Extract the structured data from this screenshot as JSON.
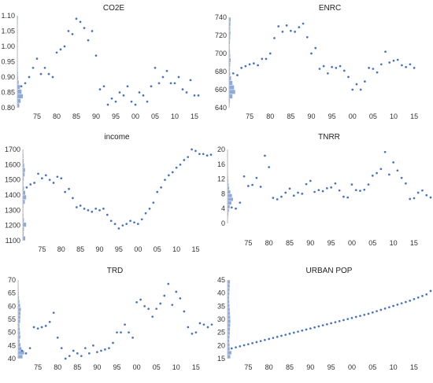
{
  "chart_data": [
    {
      "type": "scatter",
      "title": "CO2E",
      "ylim": [
        0.8,
        1.1
      ],
      "yticks": [
        0.8,
        0.85,
        0.9,
        0.95,
        1.0,
        1.05,
        1.1
      ],
      "ytick_labels": [
        "0.80",
        "0.85",
        "0.90",
        "0.95",
        "1.00",
        "1.05",
        "1.10"
      ],
      "xlim": [
        1970,
        2019
      ],
      "xticks": [
        1975,
        1980,
        1985,
        1990,
        1995,
        2000,
        2005,
        2010,
        2015
      ],
      "xtick_labels": [
        "75",
        "80",
        "85",
        "90",
        "95",
        "00",
        "05",
        "10",
        "15"
      ],
      "grid": false,
      "series": [
        {
          "x": [
            1971,
            1972,
            1973,
            1974,
            1975,
            1976,
            1977,
            1978,
            1979,
            1980,
            1981,
            1982,
            1983,
            1984,
            1985,
            1986,
            1987,
            1988,
            1989,
            1990,
            1991,
            1992,
            1993,
            1994,
            1995,
            1996,
            1997,
            1998,
            1999,
            2000,
            2001,
            2002,
            2003,
            2004,
            2005,
            2006,
            2007,
            2008,
            2009,
            2010,
            2011,
            2012,
            2013,
            2014,
            2015,
            2016
          ],
          "y": [
            0.87,
            0.88,
            0.9,
            0.93,
            0.96,
            0.91,
            0.93,
            0.91,
            0.9,
            0.98,
            0.99,
            1.0,
            1.05,
            1.04,
            1.09,
            1.08,
            1.06,
            1.02,
            1.05,
            0.97,
            0.86,
            0.87,
            0.81,
            0.83,
            0.82,
            0.85,
            0.84,
            0.87,
            0.82,
            0.81,
            0.85,
            0.84,
            0.82,
            0.87,
            0.93,
            0.88,
            0.9,
            0.92,
            0.88,
            0.88,
            0.9,
            0.86,
            0.85,
            0.89,
            0.84,
            0.84
          ]
        }
      ],
      "marginal_histogram": [
        0.18,
        0.3,
        0.5,
        0.38,
        0.24,
        0.12,
        0.08,
        0.06,
        0.05,
        0.04,
        0.03,
        0.03,
        0.03,
        0.04,
        0.05,
        0.04,
        0.03,
        0.04,
        0.05,
        0.06
      ]
    },
    {
      "type": "scatter",
      "title": "ENRC",
      "ylim": [
        640,
        740
      ],
      "yticks": [
        640,
        660,
        680,
        700,
        720,
        740
      ],
      "ytick_labels": [
        "640",
        "660",
        "680",
        "700",
        "720",
        "740"
      ],
      "xlim": [
        1970,
        2019
      ],
      "xticks": [
        1975,
        1980,
        1985,
        1990,
        1995,
        2000,
        2005,
        2010,
        2015
      ],
      "xtick_labels": [
        "75",
        "80",
        "85",
        "90",
        "95",
        "00",
        "05",
        "10",
        "15"
      ],
      "grid": false,
      "series": [
        {
          "x": [
            1971,
            1972,
            1973,
            1974,
            1975,
            1976,
            1977,
            1978,
            1979,
            1980,
            1981,
            1982,
            1983,
            1984,
            1985,
            1986,
            1987,
            1988,
            1989,
            1990,
            1991,
            1992,
            1993,
            1994,
            1995,
            1996,
            1997,
            1998,
            1999,
            2000,
            2001,
            2002,
            2003,
            2004,
            2005,
            2006,
            2007,
            2008,
            2009,
            2010,
            2011,
            2012,
            2013,
            2014,
            2015
          ],
          "y": [
            678,
            676,
            684,
            686,
            688,
            689,
            687,
            694,
            694,
            700,
            717,
            730,
            724,
            731,
            725,
            724,
            729,
            733,
            718,
            700,
            706,
            683,
            686,
            678,
            685,
            684,
            686,
            681,
            674,
            660,
            666,
            660,
            669,
            684,
            683,
            679,
            688,
            702,
            690,
            692,
            693,
            687,
            685,
            688,
            684
          ]
        }
      ],
      "marginal_histogram": [
        0.05,
        0.08,
        0.3,
        0.55,
        0.45,
        0.3,
        0.18,
        0.1,
        0.08,
        0.1,
        0.14,
        0.1,
        0.08,
        0.06,
        0.08,
        0.1,
        0.12,
        0.1,
        0.12,
        0.14
      ]
    },
    {
      "type": "scatter",
      "title": "income",
      "ylim": [
        1100,
        1700
      ],
      "yticks": [
        1100,
        1200,
        1300,
        1400,
        1500,
        1600,
        1700
      ],
      "ytick_labels": [
        "1100",
        "1200",
        "1300",
        "1400",
        "1500",
        "1600",
        "1700"
      ],
      "xlim": [
        1970,
        2019
      ],
      "xticks": [
        1975,
        1980,
        1985,
        1990,
        1995,
        2000,
        2005,
        2010,
        2015
      ],
      "xtick_labels": [
        "75",
        "80",
        "85",
        "90",
        "95",
        "00",
        "05",
        "10",
        "15"
      ],
      "grid": false,
      "series": [
        {
          "x": [
            1971,
            1972,
            1973,
            1974,
            1975,
            1976,
            1977,
            1978,
            1979,
            1980,
            1981,
            1982,
            1983,
            1984,
            1985,
            1986,
            1987,
            1988,
            1989,
            1990,
            1991,
            1992,
            1993,
            1994,
            1995,
            1996,
            1997,
            1998,
            1999,
            2000,
            2001,
            2002,
            2003,
            2004,
            2005,
            2006,
            2007,
            2008,
            2009,
            2010,
            2011,
            2012,
            2013,
            2014,
            2015,
            2016,
            2017,
            2018,
            2019
          ],
          "y": [
            1450,
            1470,
            1480,
            1540,
            1510,
            1530,
            1500,
            1480,
            1520,
            1510,
            1420,
            1440,
            1380,
            1320,
            1330,
            1310,
            1300,
            1290,
            1310,
            1300,
            1310,
            1270,
            1230,
            1210,
            1180,
            1200,
            1210,
            1230,
            1220,
            1210,
            1240,
            1280,
            1310,
            1350,
            1420,
            1450,
            1500,
            1530,
            1550,
            1580,
            1600,
            1630,
            1650,
            1700,
            1690,
            1670,
            1670,
            1660,
            1665
          ]
        }
      ],
      "marginal_histogram": [
        0.22,
        0.08,
        0.1,
        0.3,
        0.1,
        0.06,
        0.05,
        0.06,
        0.18,
        0.3,
        0.22,
        0.1,
        0.06,
        0.08,
        0.16,
        0.2,
        0.12,
        0.08,
        0.06,
        0.05
      ]
    },
    {
      "type": "scatter",
      "title": "TNRR",
      "ylim": [
        0,
        20
      ],
      "yticks": [
        0,
        4,
        8,
        12,
        16,
        20
      ],
      "ytick_labels": [
        "0",
        "4",
        "8",
        "12",
        "16",
        "20"
      ],
      "xlim": [
        1970,
        2019
      ],
      "xticks": [
        1975,
        1980,
        1985,
        1990,
        1995,
        2000,
        2005,
        2010,
        2015
      ],
      "xtick_labels": [
        "75",
        "80",
        "85",
        "90",
        "95",
        "00",
        "05",
        "10",
        "15"
      ],
      "grid": false,
      "series": [
        {
          "x": [
            1971,
            1972,
            1973,
            1974,
            1975,
            1976,
            1977,
            1978,
            1979,
            1980,
            1981,
            1982,
            1983,
            1984,
            1985,
            1986,
            1987,
            1988,
            1989,
            1990,
            1991,
            1992,
            1993,
            1994,
            1995,
            1996,
            1997,
            1998,
            1999,
            2000,
            2001,
            2002,
            2003,
            2004,
            2005,
            2006,
            2007,
            2008,
            2009,
            2010,
            2011,
            2012,
            2013,
            2014,
            2015,
            2016,
            2017,
            2018,
            2019
          ],
          "y": [
            4.3,
            4.0,
            5.6,
            12.7,
            10.1,
            10.4,
            12.3,
            9.9,
            18.3,
            15.2,
            6.9,
            6.5,
            7.2,
            8.3,
            9.4,
            7.5,
            8.3,
            8.0,
            10.6,
            11.5,
            8.5,
            9.0,
            8.7,
            9.5,
            9.7,
            10.8,
            8.9,
            7.2,
            7.0,
            10.5,
            9.0,
            8.8,
            9.1,
            10.5,
            12.9,
            13.6,
            14.7,
            19.3,
            13.2,
            16.5,
            14.3,
            12.3,
            10.8,
            6.6,
            6.8,
            8.3,
            8.9,
            7.6,
            7.0
          ]
        }
      ],
      "marginal_histogram": [
        0.03,
        0.05,
        0.08,
        0.12,
        0.2,
        0.35,
        0.5,
        0.4,
        0.25,
        0.15,
        0.1,
        0.08,
        0.06,
        0.05,
        0.04,
        0.03,
        0.02,
        0.02,
        0.03,
        0.02
      ]
    },
    {
      "type": "scatter",
      "title": "TRD",
      "ylim": [
        40,
        70
      ],
      "yticks": [
        40,
        45,
        50,
        55,
        60,
        65,
        70
      ],
      "ytick_labels": [
        "40",
        "45",
        "50",
        "55",
        "60",
        "65",
        "70"
      ],
      "xlim": [
        1970,
        2019
      ],
      "xticks": [
        1975,
        1980,
        1985,
        1990,
        1995,
        2000,
        2005,
        2010,
        2015
      ],
      "xtick_labels": [
        "75",
        "80",
        "85",
        "90",
        "95",
        "00",
        "05",
        "10",
        "15"
      ],
      "grid": false,
      "series": [
        {
          "x": [
            1971,
            1972,
            1973,
            1974,
            1975,
            1976,
            1977,
            1978,
            1979,
            1980,
            1981,
            1982,
            1983,
            1984,
            1985,
            1986,
            1987,
            1988,
            1989,
            1990,
            1991,
            1992,
            1993,
            1994,
            1995,
            1996,
            1997,
            1998,
            1999,
            2000,
            2001,
            2002,
            2003,
            2004,
            2005,
            2006,
            2007,
            2008,
            2009,
            2010,
            2011,
            2012,
            2013,
            2014,
            2015,
            2016,
            2017,
            2018,
            2019
          ],
          "y": [
            43,
            42,
            44,
            52,
            51.5,
            52,
            52.5,
            54,
            57.5,
            48,
            44,
            40,
            41,
            43,
            42,
            41,
            44,
            42,
            45,
            42.5,
            43,
            43.5,
            44,
            46,
            50,
            50,
            53,
            50,
            48,
            61.5,
            62.5,
            60,
            59,
            56,
            59,
            61,
            64,
            68.5,
            60.5,
            65.5,
            63,
            58,
            52,
            49.5,
            50,
            53.5,
            53,
            52,
            53
          ]
        }
      ],
      "marginal_histogram": [
        0.4,
        0.55,
        0.3,
        0.22,
        0.14,
        0.2,
        0.18,
        0.15,
        0.12,
        0.18,
        0.2,
        0.22,
        0.25,
        0.18,
        0.12,
        0.08,
        0.06,
        0.05,
        0.04,
        0.03
      ]
    },
    {
      "type": "scatter",
      "title": "URBAN POP",
      "ylim": [
        15,
        45
      ],
      "yticks": [
        15,
        20,
        25,
        30,
        35,
        40,
        45
      ],
      "ytick_labels": [
        "15",
        "20",
        "25",
        "30",
        "35",
        "40",
        "45"
      ],
      "xlim": [
        1970,
        2019
      ],
      "xticks": [
        1975,
        1980,
        1985,
        1990,
        1995,
        2000,
        2005,
        2010,
        2015
      ],
      "xtick_labels": [
        "75",
        "80",
        "85",
        "90",
        "95",
        "00",
        "05",
        "10",
        "15"
      ],
      "grid": false,
      "series": [
        {
          "x": [
            1971,
            1972,
            1973,
            1974,
            1975,
            1976,
            1977,
            1978,
            1979,
            1980,
            1981,
            1982,
            1983,
            1984,
            1985,
            1986,
            1987,
            1988,
            1989,
            1990,
            1991,
            1992,
            1993,
            1994,
            1995,
            1996,
            1997,
            1998,
            1999,
            2000,
            2001,
            2002,
            2003,
            2004,
            2005,
            2006,
            2007,
            2008,
            2009,
            2010,
            2011,
            2012,
            2013,
            2014,
            2015,
            2016,
            2017,
            2018,
            2019
          ],
          "y": [
            18.9,
            19.3,
            19.7,
            20.1,
            20.5,
            20.9,
            21.3,
            21.7,
            22.1,
            22.5,
            22.9,
            23.3,
            23.7,
            24.1,
            24.5,
            24.9,
            25.3,
            25.7,
            26.1,
            26.5,
            26.9,
            27.3,
            27.7,
            28.1,
            28.5,
            28.9,
            29.3,
            29.7,
            30.1,
            30.5,
            30.9,
            31.3,
            31.7,
            32.1,
            32.6,
            33.1,
            33.6,
            34.1,
            34.6,
            35.1,
            35.6,
            36.1,
            36.6,
            37.1,
            37.7,
            38.3,
            38.9,
            39.5,
            40.8
          ]
        }
      ],
      "marginal_histogram": [
        0.25,
        0.35,
        0.2,
        0.18,
        0.16,
        0.18,
        0.2,
        0.22,
        0.24,
        0.26,
        0.24,
        0.22,
        0.2,
        0.18,
        0.16,
        0.14,
        0.16,
        0.18,
        0.2,
        0.22
      ]
    }
  ],
  "colors": {
    "point": "#4472C4",
    "histogram": "#8EA9DB",
    "axis": "#bfbfbf",
    "text": "#222222"
  }
}
